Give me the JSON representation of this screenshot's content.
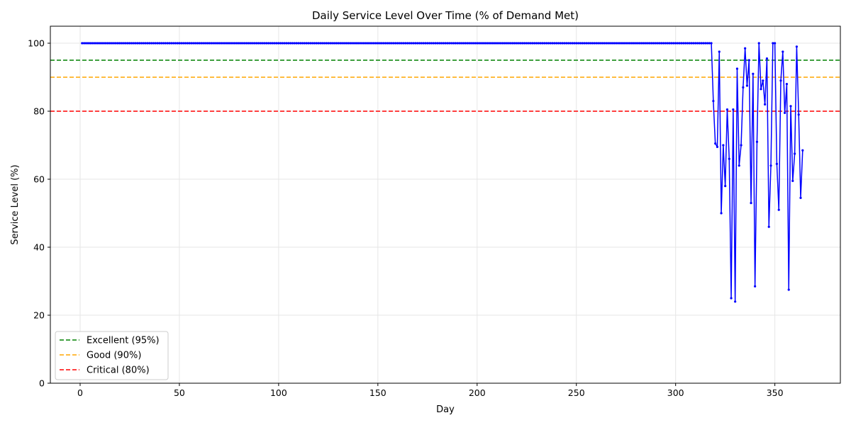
{
  "chart_data": {
    "type": "line",
    "title": "Daily Service Level Over Time (% of Demand Met)",
    "xlabel": "Day",
    "ylabel": "Service Level (%)",
    "xlim": [
      -15,
      383
    ],
    "ylim": [
      0,
      105
    ],
    "xticks": [
      0,
      50,
      100,
      150,
      200,
      250,
      300,
      350
    ],
    "yticks": [
      0,
      20,
      40,
      60,
      80,
      100
    ],
    "grid": true,
    "legend_position": "lower-left",
    "series": [
      {
        "line_color": "#0000ff",
        "marker": "circle",
        "constant_segment": {
          "x_start": 1,
          "x_end": 318,
          "y": 100
        },
        "points": [
          [
            319,
            83.0
          ],
          [
            320,
            70.5
          ],
          [
            321,
            69.5
          ],
          [
            322,
            97.5
          ],
          [
            323,
            50.0
          ],
          [
            324,
            70.0
          ],
          [
            325,
            58.0
          ],
          [
            326,
            80.5
          ],
          [
            327,
            66.0
          ],
          [
            328,
            25.0
          ],
          [
            329,
            80.5
          ],
          [
            330,
            24.0
          ],
          [
            331,
            92.5
          ],
          [
            332,
            64.0
          ],
          [
            333,
            70.0
          ],
          [
            334,
            87.0
          ],
          [
            335,
            98.5
          ],
          [
            336,
            87.5
          ],
          [
            337,
            95.0
          ],
          [
            338,
            53.0
          ],
          [
            339,
            91.0
          ],
          [
            340,
            28.5
          ],
          [
            341,
            71.0
          ],
          [
            342,
            100.0
          ],
          [
            343,
            86.5
          ],
          [
            344,
            89.0
          ],
          [
            345,
            82.0
          ],
          [
            346,
            95.5
          ],
          [
            347,
            46.0
          ],
          [
            348,
            64.0
          ],
          [
            349,
            100.0
          ],
          [
            350,
            100.0
          ],
          [
            351,
            64.5
          ],
          [
            352,
            51.0
          ],
          [
            353,
            89.0
          ],
          [
            354,
            97.5
          ],
          [
            355,
            79.5
          ],
          [
            356,
            88.0
          ],
          [
            357,
            27.5
          ],
          [
            358,
            81.5
          ],
          [
            359,
            59.5
          ],
          [
            360,
            67.5
          ],
          [
            361,
            99.0
          ],
          [
            362,
            79.0
          ],
          [
            363,
            54.5
          ],
          [
            364,
            68.5
          ]
        ]
      }
    ],
    "reference_lines": [
      {
        "label": "Excellent (95%)",
        "y": 95,
        "color": "#008000",
        "style": "dashed"
      },
      {
        "label": "Good (90%)",
        "y": 90,
        "color": "#ffa500",
        "style": "dashed"
      },
      {
        "label": "Critical (80%)",
        "y": 80,
        "color": "#ff0000",
        "style": "dashed"
      }
    ]
  }
}
